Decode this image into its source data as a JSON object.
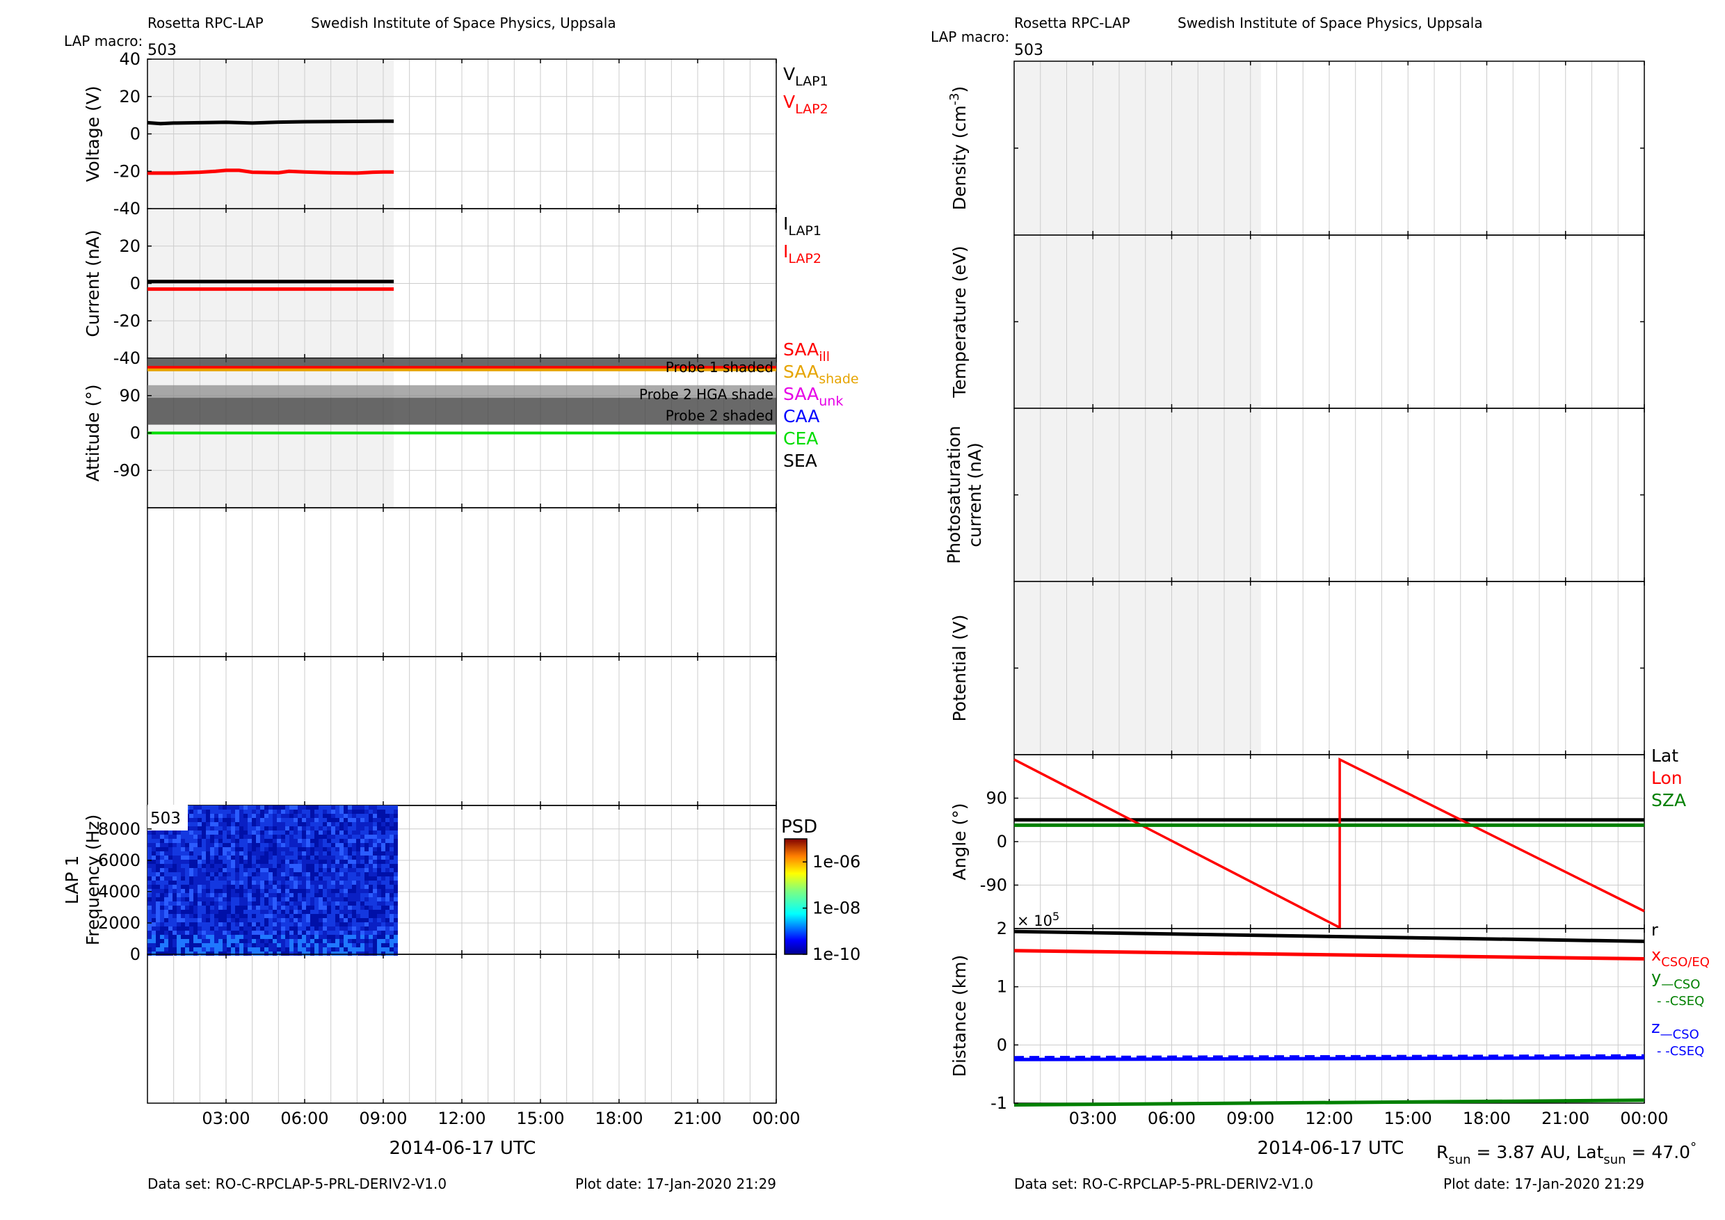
{
  "header": {
    "left": {
      "instrument": "Rosetta RPC-LAP",
      "institute": "Swedish Institute of Space Physics, Uppsala",
      "macro_label": "LAP macro:",
      "macro_value": "503"
    },
    "right": {
      "instrument": "Rosetta RPC-LAP",
      "institute": "Swedish Institute of Space Physics, Uppsala",
      "macro_label": "LAP macro:",
      "macro_value": "503"
    }
  },
  "footer": {
    "left": {
      "dataset": "Data set: RO-C-RPCLAP-5-PRL-DERIV2-V1.0",
      "plotdate": "Plot date: 17-Jan-2020 21:29"
    },
    "right": {
      "dataset": "Data set: RO-C-RPCLAP-5-PRL-DERIV2-V1.0",
      "plotdate": "Plot date: 17-Jan-2020 21:29"
    }
  },
  "time_axis": {
    "xlim": [
      0,
      24
    ],
    "ticks": [
      3,
      6,
      9,
      12,
      15,
      18,
      21,
      24
    ],
    "tick_labels": [
      "03:00",
      "06:00",
      "09:00",
      "12:00",
      "15:00",
      "18:00",
      "21:00",
      "00:00"
    ],
    "grid_step_hours": 1,
    "xlabel_left": "2014-06-17 UTC",
    "xlabel_right": "2014-06-17 UTC",
    "data_coverage_hours": [
      0,
      9.4
    ]
  },
  "sun_info": {
    "r_label": "R",
    "r_sub": "sun",
    "r_text": " = 3.87 AU, Lat",
    "lat_sub": "sun",
    "lat_text": " = 47.0",
    "degree": "°"
  },
  "colors": {
    "black": "#000000",
    "red": "#ff0000",
    "orange": "#e6a400",
    "magenta": "#e600e6",
    "blue": "#0000ff",
    "green": "#00dd00",
    "darkgreen": "#008000",
    "coverage_shade": "#f2f2f2",
    "grid": "#cccccc"
  },
  "chart_data": [
    {
      "id": "voltage",
      "type": "line",
      "ylabel": "Voltage (V)",
      "ylim": [
        -40,
        40
      ],
      "yticks": [
        40,
        20,
        0,
        -20,
        -40
      ],
      "ytick_labels": [
        "40",
        "20",
        "0",
        "-20",
        "-40"
      ],
      "series": [
        {
          "name": "V",
          "sub": "LAP1",
          "color": "#000000",
          "x": [
            0,
            0.5,
            1,
            2,
            3,
            4,
            5,
            6,
            7,
            8,
            9,
            9.4
          ],
          "y": [
            6,
            5.5,
            5.8,
            6,
            6.2,
            5.8,
            6.3,
            6.5,
            6.6,
            6.7,
            6.8,
            6.8
          ]
        },
        {
          "name": "V",
          "sub": "LAP2",
          "color": "#ff0000",
          "x": [
            0,
            1,
            2,
            2.6,
            3,
            3.5,
            4,
            5,
            5.4,
            6,
            7,
            8,
            8.6,
            9,
            9.4
          ],
          "y": [
            -21,
            -21,
            -20.5,
            -20,
            -19.5,
            -19.5,
            -20.5,
            -20.8,
            -20,
            -20.4,
            -20.8,
            -21,
            -20.5,
            -20.4,
            -20.4
          ]
        }
      ]
    },
    {
      "id": "current",
      "type": "line",
      "ylabel": "Current (nA)",
      "ylim": [
        -40,
        40
      ],
      "yticks": [
        20,
        0,
        -20,
        -40
      ],
      "ytick_labels": [
        "20",
        "0",
        "-20",
        "-40"
      ],
      "series": [
        {
          "name": "I",
          "sub": "LAP1",
          "color": "#000000",
          "x": [
            0,
            9.4
          ],
          "y": [
            1,
            1
          ]
        },
        {
          "name": "I",
          "sub": "LAP2",
          "color": "#ff0000",
          "x": [
            0,
            9.4
          ],
          "y": [
            -3,
            -3
          ]
        }
      ]
    },
    {
      "id": "attitude",
      "type": "line",
      "ylabel": "Attitude (°)",
      "ylim": [
        -180,
        180
      ],
      "yticks": [
        90,
        0,
        -90
      ],
      "ytick_labels": [
        "90",
        "0",
        "-90"
      ],
      "bands": [
        {
          "label": "Probe 1 shaded",
          "y0": 180,
          "y1": 150,
          "color": "#444444",
          "opacity": 0.8
        },
        {
          "label": "Probe 2 HGA shade",
          "y0": 115,
          "y1": 85,
          "color": "#888888",
          "opacity": 0.7
        },
        {
          "label": "Probe 2 shaded",
          "y0": 85,
          "y1": 20,
          "color": "#444444",
          "opacity": 0.8
        }
      ],
      "series": [
        {
          "name": "SAA",
          "sub": "ill",
          "color": "#ff0000",
          "x": [
            0,
            24
          ],
          "y": [
            158,
            158
          ]
        },
        {
          "name": "SAA",
          "sub": "shade",
          "color": "#e6a400",
          "x": [
            0,
            24
          ],
          "y": [
            152,
            152
          ]
        },
        {
          "name": "SAA",
          "sub": "unk",
          "color": "#e600e6",
          "x": [],
          "y": []
        },
        {
          "name": "CAA",
          "sub": "",
          "color": "#0000ff",
          "x": [],
          "y": []
        },
        {
          "name": "CEA",
          "sub": "",
          "color": "#00dd00",
          "x": [
            0,
            24
          ],
          "y": [
            0,
            0
          ]
        },
        {
          "name": "SEA",
          "sub": "",
          "color": "#000000",
          "x": [],
          "y": []
        }
      ]
    },
    {
      "id": "empty1",
      "type": "line",
      "ylabel": "",
      "series": []
    },
    {
      "id": "empty2",
      "type": "line",
      "ylabel": "",
      "series": []
    },
    {
      "id": "spectrogram",
      "type": "heatmap",
      "ylabel": "Frequency (Hz)",
      "ylabel2": "LAP 1",
      "ylim": [
        0,
        9500
      ],
      "yticks": [
        8000,
        6000,
        4000,
        2000,
        0
      ],
      "ytick_labels": [
        "8000",
        "6000",
        "4000",
        "2000",
        "0"
      ],
      "x_range_hours": [
        0,
        9.4
      ],
      "inset_label": "503",
      "colorbar": {
        "title": "PSD",
        "tick_labels": [
          "1e-06",
          "1e-08",
          "1e-10"
        ],
        "range": [
          1e-10,
          1e-05
        ]
      }
    },
    {
      "id": "empty3",
      "type": "line",
      "ylabel": "",
      "series": []
    },
    {
      "id": "density",
      "type": "line",
      "ylabel": "Density (cm",
      "ylabel_sup": "-3",
      "ylabel_end": ")",
      "series": []
    },
    {
      "id": "temperature",
      "type": "line",
      "ylabel": "Temperature (eV)",
      "series": []
    },
    {
      "id": "photosat",
      "type": "line",
      "ylabel": "Photosaturation",
      "ylabel2": "current (nA)",
      "series": []
    },
    {
      "id": "potential",
      "type": "line",
      "ylabel": "Potential (V)",
      "series": []
    },
    {
      "id": "angle",
      "type": "line",
      "ylabel": "Angle (°)",
      "ylim": [
        -180,
        180
      ],
      "yticks": [
        90,
        0,
        -90
      ],
      "ytick_labels": [
        "90",
        "0",
        "-90"
      ],
      "series": [
        {
          "name": "Lat",
          "sub": "",
          "color": "#000000",
          "x": [
            0,
            24
          ],
          "y": [
            45,
            45
          ]
        },
        {
          "name": "Lon",
          "sub": "",
          "color": "#ff0000",
          "x": [
            0,
            12.4,
            12.4,
            24
          ],
          "y": [
            170,
            -178,
            170,
            -144
          ]
        },
        {
          "name": "SZA",
          "sub": "",
          "color": "#008000",
          "x": [
            0,
            24
          ],
          "y": [
            34,
            34
          ]
        }
      ]
    },
    {
      "id": "distance",
      "type": "line",
      "ylabel": "Distance (km)",
      "ylim": [
        -1,
        2
      ],
      "yticks": [
        2,
        1,
        0,
        -1
      ],
      "ytick_labels": [
        "2",
        "1",
        "0",
        "-1"
      ],
      "exponent_label": "× 10",
      "exponent_sup": "5",
      "series": [
        {
          "name": "r",
          "sub": "",
          "color": "#000000",
          "dash": "",
          "x": [
            0,
            24
          ],
          "y": [
            1.95,
            1.78
          ]
        },
        {
          "name": "x",
          "sub": "CSO/EQ",
          "color": "#ff0000",
          "dash": "",
          "x": [
            0,
            24
          ],
          "y": [
            1.62,
            1.48
          ]
        },
        {
          "name": "y",
          "sub": "—CSO",
          "sub2": "- -CSEQ",
          "color": "#008000",
          "dash": "",
          "x": [
            0,
            24
          ],
          "y": [
            -1.03,
            -0.95
          ]
        },
        {
          "name": "z",
          "sub": "—CSO",
          "sub2": "- -CSEQ",
          "color": "#0000ff",
          "dash": "",
          "x": [
            0,
            24
          ],
          "y": [
            -0.25,
            -0.22
          ]
        },
        {
          "name": "z",
          "sub": "CSEQ",
          "color": "#0000ff",
          "dash": "14,8",
          "x": [
            0,
            24
          ],
          "y": [
            -0.22,
            -0.19
          ]
        }
      ]
    }
  ]
}
